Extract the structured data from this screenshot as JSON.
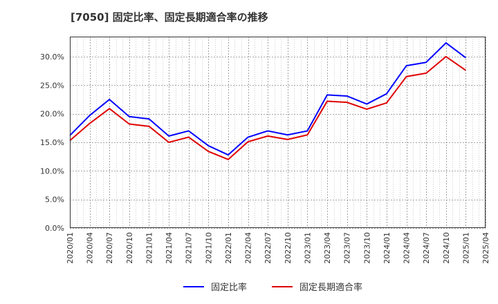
{
  "chart_data": {
    "type": "line",
    "title": "[7050]  固定比率、固定長期適合率の推移",
    "xlabel": "",
    "ylabel": "",
    "ylim": [
      0,
      33.5
    ],
    "yticks": [
      0,
      5,
      10,
      15,
      20,
      25,
      30
    ],
    "ytick_labels": [
      "0.0%",
      "5.0%",
      "10.0%",
      "15.0%",
      "20.0%",
      "25.0%",
      "30.0%"
    ],
    "x": [
      "2020/01",
      "2020/04",
      "2020/07",
      "2020/10",
      "2021/01",
      "2021/04",
      "2021/07",
      "2021/10",
      "2022/01",
      "2022/04",
      "2022/07",
      "2022/10",
      "2023/01",
      "2023/04",
      "2023/07",
      "2023/10",
      "2024/01",
      "2024/04",
      "2024/07",
      "2024/10",
      "2025/01",
      "2025/04"
    ],
    "grid": true,
    "legend_position": "bottom-center",
    "series": [
      {
        "name": "固定比率",
        "color": "#0000ff",
        "values": [
          16.2,
          19.7,
          22.5,
          19.5,
          19.1,
          16.1,
          17.0,
          14.4,
          12.8,
          15.9,
          17.0,
          16.3,
          17.0,
          23.3,
          23.1,
          21.7,
          23.5,
          28.4,
          29.0,
          32.4,
          29.8,
          null
        ]
      },
      {
        "name": "固定長期適合率",
        "color": "#e00000",
        "values": [
          15.3,
          18.3,
          20.9,
          18.2,
          17.8,
          15.0,
          15.9,
          13.4,
          12.0,
          15.1,
          16.1,
          15.5,
          16.3,
          22.2,
          22.0,
          20.8,
          21.9,
          26.5,
          27.1,
          30.0,
          27.6,
          null
        ]
      }
    ]
  }
}
